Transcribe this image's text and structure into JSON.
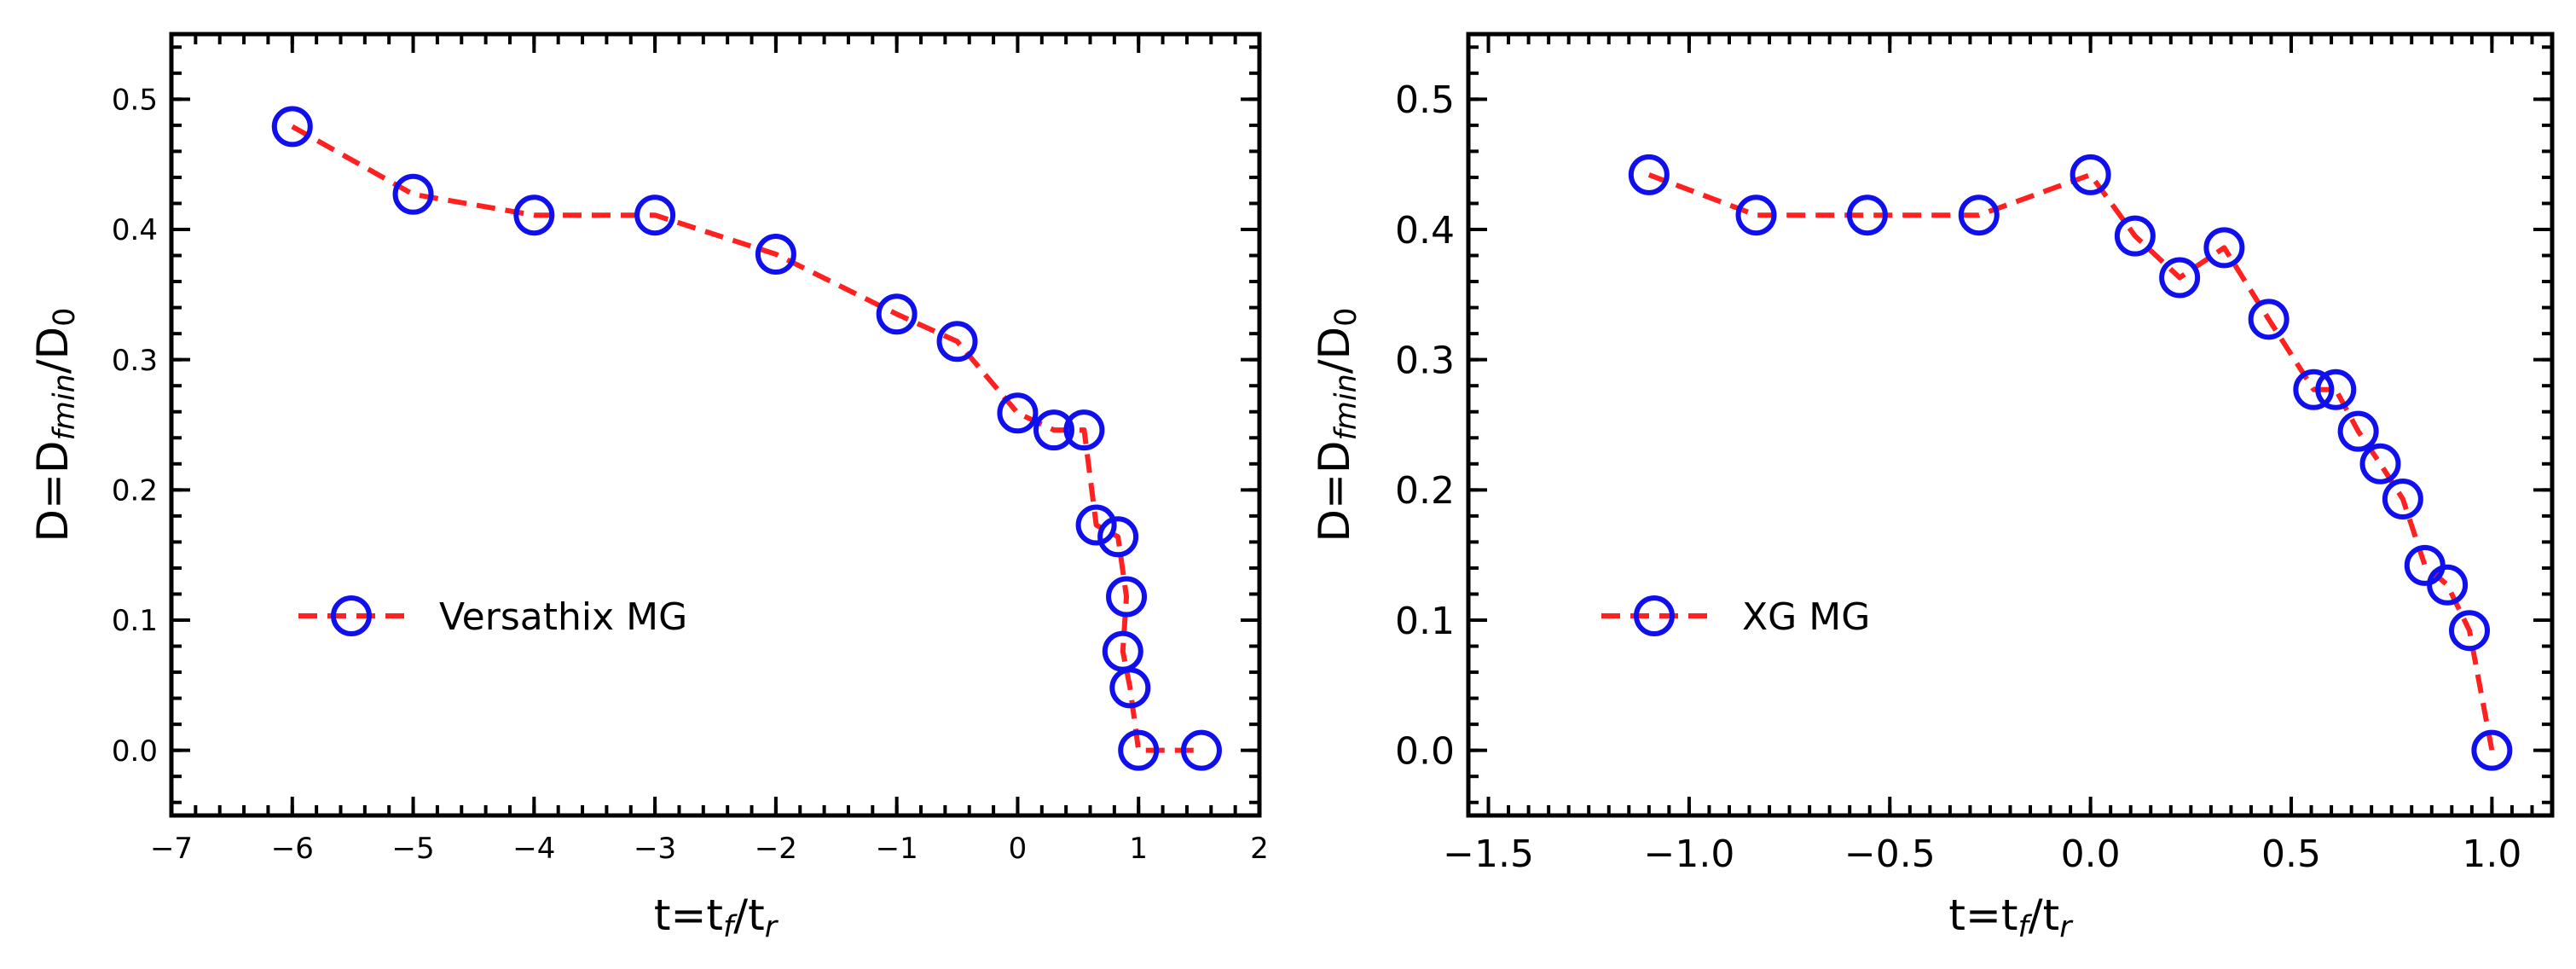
{
  "chart_data": [
    {
      "type": "line",
      "xlabel": {
        "main": "t=t",
        "sub1": "f",
        "mid": "/t",
        "sub2": "r"
      },
      "ylabel": {
        "main": "D=D",
        "sub1": "fmin",
        "mid": "/D",
        "sub2": "0"
      },
      "xlim": [
        -7,
        2
      ],
      "ylim": [
        -0.05,
        0.55
      ],
      "xticks": [
        -7,
        -6,
        -5,
        -4,
        -3,
        -2,
        -1,
        0,
        1,
        2
      ],
      "xtick_labels": [
        "−7",
        "−6",
        "−5",
        "−4",
        "−3",
        "−2",
        "−1",
        "0",
        "1",
        "2"
      ],
      "yticks": [
        0.0,
        0.1,
        0.2,
        0.3,
        0.4,
        0.5
      ],
      "ytick_labels": [
        "0.0",
        "0.1",
        "0.2",
        "0.3",
        "0.4",
        "0.5"
      ],
      "legend_position": "center-left",
      "series": [
        {
          "name": "Versathix MG",
          "line_color": "#ff2020",
          "marker_color": "#1010ee",
          "x": [
            -6,
            -5,
            -4,
            -3,
            -2,
            -1,
            -0.5,
            0,
            0.3,
            0.55,
            0.65,
            0.83,
            0.9,
            0.87,
            0.93,
            1.0,
            1.52
          ],
          "y": [
            0.479,
            0.427,
            0.411,
            0.411,
            0.381,
            0.335,
            0.314,
            0.259,
            0.246,
            0.246,
            0.173,
            0.164,
            0.118,
            0.076,
            0.048,
            0.0,
            0.0
          ]
        }
      ]
    },
    {
      "type": "line",
      "xlabel": {
        "main": "t=t",
        "sub1": "f",
        "mid": "/t",
        "sub2": "r"
      },
      "ylabel": {
        "main": "D=D",
        "sub1": "fmin",
        "mid": "/D",
        "sub2": "0"
      },
      "xlim": [
        -1.55,
        1.15
      ],
      "ylim": [
        -0.05,
        0.55
      ],
      "xticks": [
        -1.5,
        -1.0,
        -0.5,
        0.0,
        0.5,
        1.0
      ],
      "xtick_labels": [
        "−1.5",
        "−1.0",
        "−0.5",
        "0.0",
        "0.5",
        "1.0"
      ],
      "yticks": [
        0.0,
        0.1,
        0.2,
        0.3,
        0.4,
        0.5
      ],
      "ytick_labels": [
        "0.0",
        "0.1",
        "0.2",
        "0.3",
        "0.4",
        "0.5"
      ],
      "legend_position": "center-left",
      "series": [
        {
          "name": "XG MG",
          "line_color": "#ff2020",
          "marker_color": "#1010ee",
          "x": [
            -1.1,
            -0.833,
            -0.556,
            -0.278,
            0.0,
            0.111,
            0.222,
            0.333,
            0.444,
            0.556,
            0.611,
            0.667,
            0.722,
            0.778,
            0.833,
            0.889,
            0.944,
            1.0
          ],
          "y": [
            0.442,
            0.411,
            0.411,
            0.411,
            0.442,
            0.395,
            0.363,
            0.386,
            0.331,
            0.277,
            0.277,
            0.245,
            0.22,
            0.193,
            0.142,
            0.127,
            0.092,
            0.0
          ]
        }
      ]
    }
  ]
}
